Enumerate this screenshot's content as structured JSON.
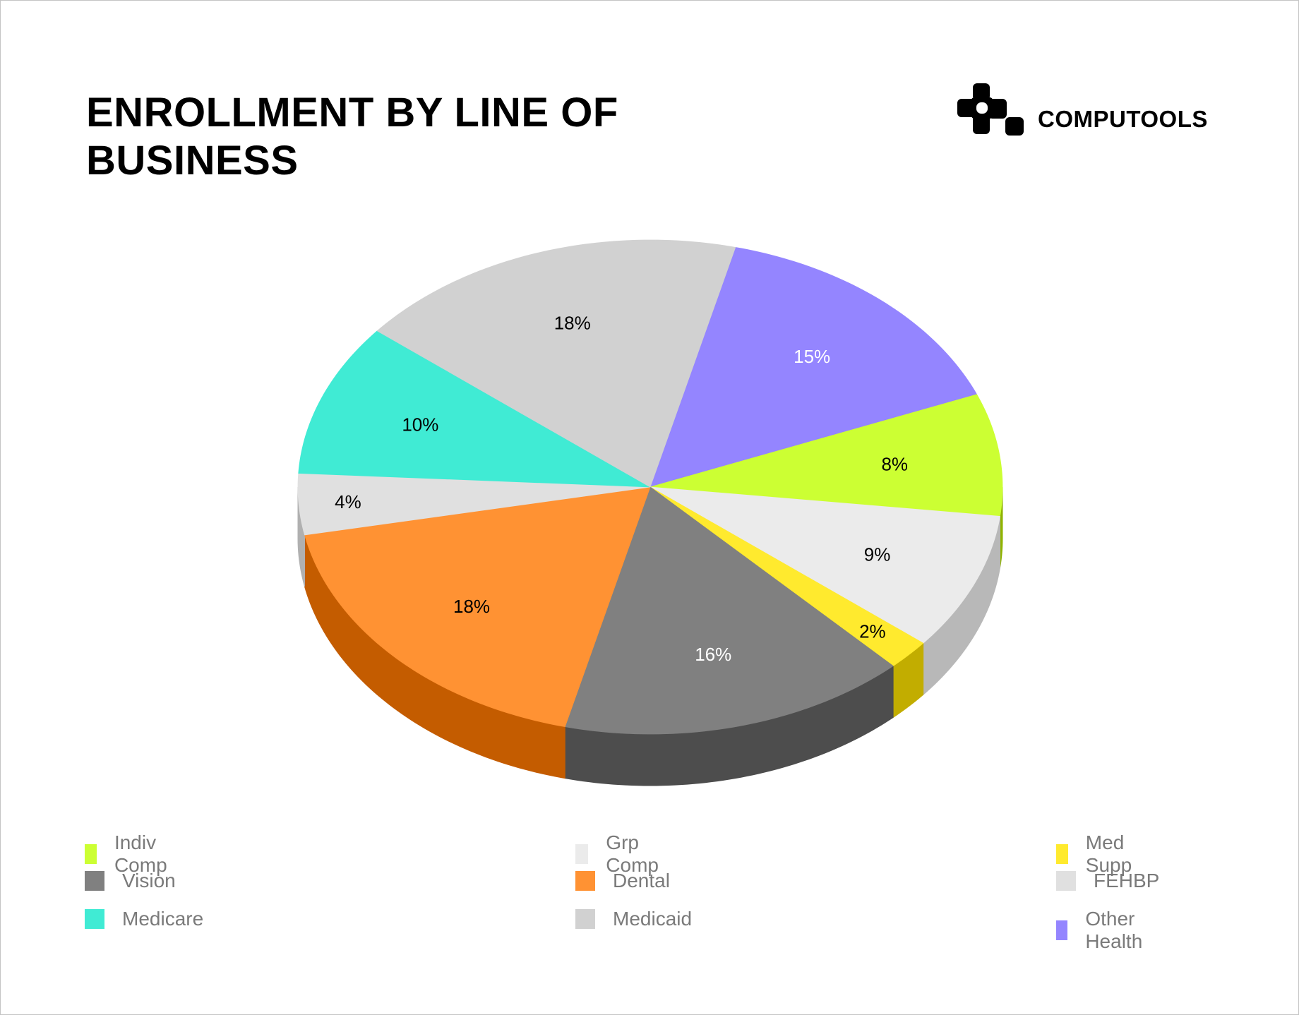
{
  "title": "ENROLLMENT BY LINE OF BUSINESS",
  "brand": {
    "name": "COMPUTOOLS",
    "logo_icon": "computools-logo-icon"
  },
  "chart_data": {
    "type": "pie",
    "style": "3d",
    "title": "ENROLLMENT BY LINE OF BUSINESS",
    "start_angle_deg_clockwise_from_top": 14,
    "slices": [
      {
        "name": "Other Health",
        "value": 15,
        "label": "15%",
        "color": "#9485ff",
        "side": "#6a5ccc",
        "label_color": "#ffffff"
      },
      {
        "name": "Indiv Comp",
        "value": 8,
        "label": "8%",
        "color": "#ccff33",
        "side": "#8fb300",
        "label_color": "#000000"
      },
      {
        "name": "Grp Comp",
        "value": 9,
        "label": "9%",
        "color": "#ebebeb",
        "side": "#b8b8b8",
        "label_color": "#000000"
      },
      {
        "name": "Med Supp",
        "value": 2,
        "label": "2%",
        "color": "#ffea2e",
        "side": "#c2ad00",
        "label_color": "#000000"
      },
      {
        "name": "Vision",
        "value": 16,
        "label": "16%",
        "color": "#808080",
        "side": "#4d4d4d",
        "label_color": "#ffffff"
      },
      {
        "name": "Dental",
        "value": 18,
        "label": "18%",
        "color": "#ff9233",
        "side": "#c45c00",
        "label_color": "#000000"
      },
      {
        "name": "FEHBP",
        "value": 4,
        "label": "4%",
        "color": "#e0e0e0",
        "side": "#b0b0b0",
        "label_color": "#000000"
      },
      {
        "name": "Medicare",
        "value": 10,
        "label": "10%",
        "color": "#40ebd4",
        "side": "#22b3a0",
        "label_color": "#000000"
      },
      {
        "name": "Medicaid",
        "value": 18,
        "label": "18%",
        "color": "#d1d1d1",
        "side": "#a0a0a0",
        "label_color": "#000000"
      }
    ],
    "legend": {
      "placement": "bottom",
      "items": [
        {
          "name": "Indiv Comp",
          "color": "#ccff33"
        },
        {
          "name": "Grp Comp",
          "color": "#ebebeb"
        },
        {
          "name": "Med Supp",
          "color": "#ffea2e"
        },
        {
          "name": "Vision",
          "color": "#808080"
        },
        {
          "name": "Dental",
          "color": "#ff9233"
        },
        {
          "name": "FEHBP",
          "color": "#e0e0e0"
        },
        {
          "name": "Medicare",
          "color": "#40ebd4"
        },
        {
          "name": "Medicaid",
          "color": "#d1d1d1"
        },
        {
          "name": "Other Health",
          "color": "#9485ff"
        }
      ]
    }
  }
}
